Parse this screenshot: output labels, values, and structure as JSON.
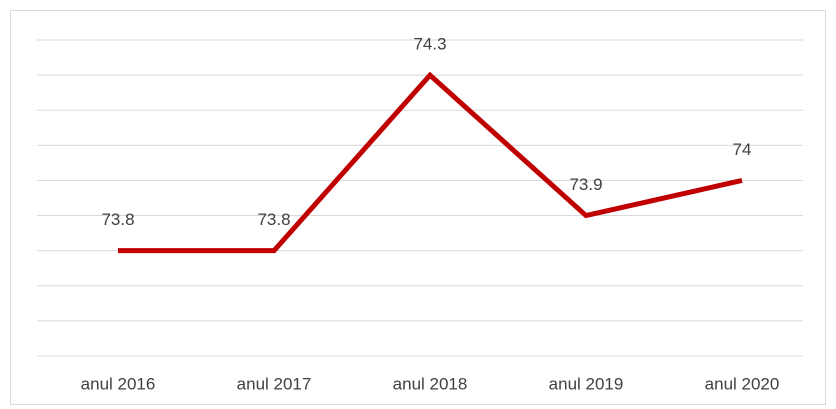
{
  "chart_data": {
    "type": "line",
    "categories": [
      "anul 2016",
      "anul 2017",
      "anul 2018",
      "anul 2019",
      "anul 2020"
    ],
    "values": [
      73.8,
      73.8,
      74.3,
      73.9,
      74
    ],
    "color": "#c00000",
    "ylim": [
      73.5,
      74.4
    ],
    "yticks": [
      73.5,
      73.6,
      73.7,
      73.8,
      73.9,
      74.0,
      74.1,
      74.2,
      74.3,
      74.4
    ],
    "grid": true
  }
}
